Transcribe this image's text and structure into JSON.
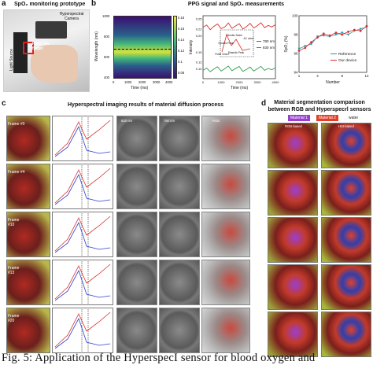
{
  "panels": {
    "a": {
      "label": "a",
      "title": "SpO₂ monitoring prototype",
      "annotations": [
        "Hyperspectral Camera",
        "Place the finger",
        "Light Source"
      ]
    },
    "b": {
      "label": "b",
      "title": "PPG signal and SpO₂ measurements"
    },
    "c": {
      "label": "c",
      "title": "Hyperspectral imaging results of material diffusion process",
      "column_labels": [
        "620 nm",
        "780 nm",
        "620 nm",
        "780 nm",
        "RGB"
      ],
      "frames": [
        "Frame #0",
        "Frame #4",
        "Frame #10",
        "Frame #13",
        "Frame #20"
      ]
    },
    "d": {
      "label": "d",
      "title_line1": "Material segmentation comparison",
      "title_line2": "between RGB and Hyperspecrl sensors",
      "legend": [
        "Material 1",
        "Material 2",
        "water"
      ],
      "columns": [
        "RGB-based",
        "HSI-based"
      ]
    }
  },
  "heatmap": {
    "ylabel": "Wavelength (nm)",
    "xlabel": "Time (ms)",
    "yticks": [
      "1000",
      "800",
      "600",
      "400"
    ],
    "xticks": [
      "0",
      "1000",
      "2000",
      "3000",
      "4000"
    ],
    "colorbar_ticks": [
      "0.18",
      "0.16",
      "0.14",
      "0.12",
      "0.1",
      "0.08"
    ]
  },
  "colors": {
    "heat_low": "#3a0f6e",
    "heat_mid": "#2b8f8a",
    "heat_high": "#d8e53a",
    "line_780": "#d6312b",
    "line_830": "#2e9a4a",
    "ref": "#2f8fb0",
    "ours": "#d6312b",
    "mat1": "#9b3fd0",
    "mat2": "#e0402a",
    "water": "#bfe04a"
  },
  "chart_data": [
    {
      "type": "line",
      "title": "",
      "xlabel": "Time (ms)",
      "ylabel": "Intensity",
      "xlim": [
        0,
        4000
      ],
      "ylim": [
        0.07,
        0.26
      ],
      "xticks": [
        "0",
        "1000",
        "2000",
        "3000",
        "4000"
      ],
      "yticks": [
        "0.25",
        "0.22",
        "0.20",
        "0.15",
        "0.12",
        "0.10"
      ],
      "series": [
        {
          "name": "780 nm",
          "x": [
            0,
            200,
            400,
            600,
            800,
            1000,
            1200,
            1400,
            1600,
            1800,
            2000,
            2200,
            2400,
            2600,
            2800,
            3000,
            3200,
            3400,
            3600,
            3800,
            4000
          ],
          "values": [
            0.225,
            0.232,
            0.218,
            0.228,
            0.235,
            0.221,
            0.226,
            0.238,
            0.222,
            0.229,
            0.236,
            0.22,
            0.227,
            0.237,
            0.223,
            0.23,
            0.239,
            0.224,
            0.231,
            0.226,
            0.233
          ]
        },
        {
          "name": "830 nm",
          "x": [
            0,
            200,
            400,
            600,
            800,
            1000,
            1200,
            1400,
            1600,
            1800,
            2000,
            2200,
            2400,
            2600,
            2800,
            3000,
            3200,
            3400,
            3600,
            3800,
            4000
          ],
          "values": [
            0.095,
            0.102,
            0.091,
            0.099,
            0.106,
            0.093,
            0.1,
            0.108,
            0.094,
            0.101,
            0.107,
            0.092,
            0.098,
            0.105,
            0.093,
            0.1,
            0.107,
            0.095,
            0.101,
            0.097,
            0.103
          ]
        }
      ],
      "annotations": [
        "Pulse Onset",
        "Systolic Peak",
        "Dicrotic Notch",
        "Diastolic Peak",
        "AC value"
      ]
    },
    {
      "type": "line",
      "title": "",
      "xlabel": "Number",
      "ylabel": "SpO₂ (%)",
      "xlim": [
        1,
        12
      ],
      "ylim": [
        94,
        100
      ],
      "xticks": [
        "1",
        "4",
        "8",
        "12"
      ],
      "yticks": [
        "100",
        "98",
        "96",
        "94"
      ],
      "legend_position": "bottom-right",
      "series": [
        {
          "name": "Reference",
          "x": [
            1,
            2,
            3,
            4,
            5,
            6,
            7,
            8,
            9,
            10,
            11,
            12
          ],
          "values": [
            96.5,
            96.8,
            97.0,
            97.8,
            97.9,
            97.8,
            98.0,
            98.2,
            98.0,
            98.4,
            98.6,
            98.8
          ]
        },
        {
          "name": "Our device",
          "x": [
            1,
            2,
            3,
            4,
            5,
            6,
            7,
            8,
            9,
            10,
            11,
            12
          ],
          "values": [
            96.3,
            96.6,
            97.2,
            97.7,
            98.1,
            97.9,
            98.2,
            98.0,
            98.3,
            98.5,
            98.4,
            98.9
          ]
        }
      ]
    }
  ],
  "caption": "Fig. 5: Application of the HyperspecI sensor for blood oxygen and"
}
